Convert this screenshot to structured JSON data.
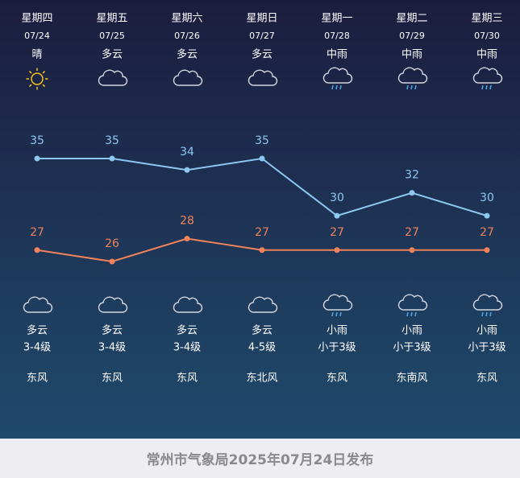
{
  "days": [
    {
      "weekday": "星期四",
      "date": "07/24",
      "day_weather": "晴",
      "night_weather": "多云",
      "wind_level": "3-4级",
      "wind_dir": "东风"
    },
    {
      "weekday": "星期五",
      "date": "07/25",
      "day_weather": "多云",
      "night_weather": "多云",
      "wind_level": "3-4级",
      "wind_dir": "东风"
    },
    {
      "weekday": "星期六",
      "date": "07/26",
      "day_weather": "多云",
      "night_weather": "多云",
      "wind_level": "3-4级",
      "wind_dir": "东风"
    },
    {
      "weekday": "星期日",
      "date": "07/27",
      "day_weather": "多云",
      "night_weather": "多云",
      "wind_level": "4-5级",
      "wind_dir": "东北风"
    },
    {
      "weekday": "星期一",
      "date": "07/28",
      "day_weather": "中雨",
      "night_weather": "小雨",
      "wind_level": "小于3级",
      "wind_dir": "东风"
    },
    {
      "weekday": "星期二",
      "date": "07/29",
      "day_weather": "中雨",
      "night_weather": "小雨",
      "wind_level": "小于3级",
      "wind_dir": "东南风"
    },
    {
      "weekday": "星期三",
      "date": "07/30",
      "day_weather": "中雨",
      "night_weather": "小雨",
      "wind_level": "小于3级",
      "wind_dir": "东风"
    }
  ],
  "chart_data": {
    "type": "line",
    "series": [
      {
        "color": "#8cc8f2",
        "values": [
          35,
          35,
          34,
          35,
          30,
          32,
          30
        ]
      },
      {
        "color": "#f2825a",
        "values": [
          27,
          26,
          28,
          27,
          27,
          27,
          27
        ]
      }
    ]
  },
  "footer": "常州市气象局2025年07月24日发布"
}
